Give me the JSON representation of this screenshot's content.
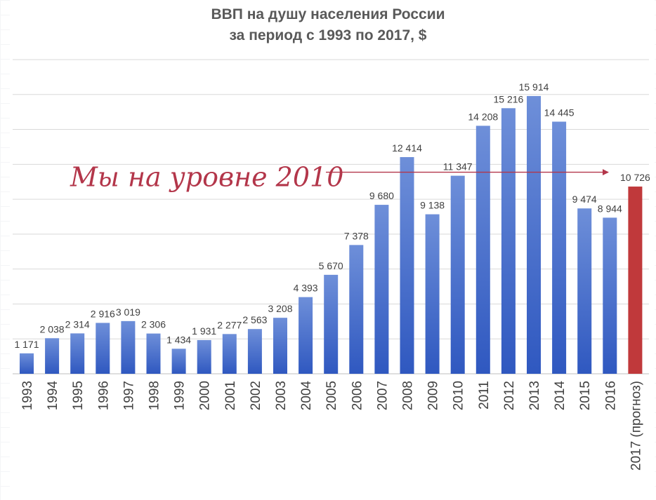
{
  "chart_data": {
    "type": "bar",
    "title": [
      "ВВП на душу населения России",
      "за период с 1993 по 2017,  $"
    ],
    "categories": [
      "1993",
      "1994",
      "1995",
      "1996",
      "1997",
      "1998",
      "1999",
      "2000",
      "2001",
      "2002",
      "2003",
      "2004",
      "2005",
      "2006",
      "2007",
      "2008",
      "2009",
      "2010",
      "2011",
      "2012",
      "2013",
      "2014",
      "2015",
      "2016",
      "2017 (прогноз)"
    ],
    "values": [
      1171,
      2038,
      2314,
      2916,
      3019,
      2306,
      1434,
      1931,
      2277,
      2563,
      3208,
      4393,
      5670,
      7378,
      9680,
      12414,
      9138,
      11347,
      14208,
      15216,
      15914,
      14445,
      9474,
      8944,
      10726
    ],
    "value_labels": [
      "1 171",
      "2 038",
      "2 314",
      "2 916",
      "3 019",
      "2 306",
      "1 434",
      "1 931",
      "2 277",
      "2 563",
      "3 208",
      "4 393",
      "5 670",
      "7 378",
      "9 680",
      "12 414",
      "9 138",
      "11 347",
      "14 208",
      "15 216",
      "15 914",
      "14 445",
      "9 474",
      "8 944",
      "10 726"
    ],
    "highlight_category": "2017 (прогноз)",
    "colors": {
      "bar_top": "#6e8fd9",
      "bar_bottom": "#2f58c0",
      "highlight": "#c0393b",
      "gridline": "#d9d9d9",
      "annotation": "#b3364a"
    },
    "ylim": [
      0,
      18000
    ],
    "y_gridlines": [
      2000,
      4000,
      6000,
      8000,
      10000,
      12000,
      14000,
      16000,
      18000
    ],
    "grid": true,
    "legend": "none",
    "annotation": {
      "text": "Мы на уровне 2010",
      "arrow_y_value": 11347
    }
  }
}
